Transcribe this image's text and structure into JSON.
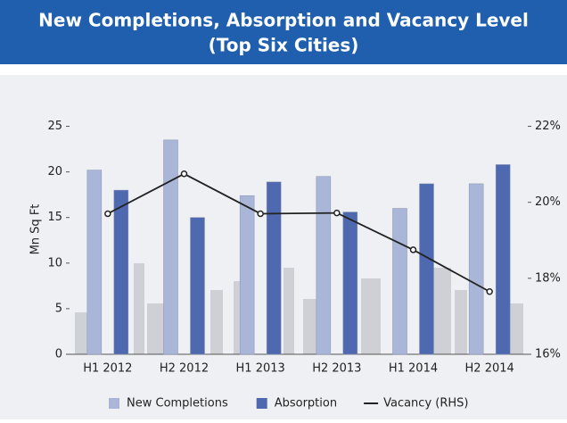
{
  "chart_data": {
    "type": "bar",
    "title": "New Completions, Absorption and Vacancy Level",
    "subtitle": "(Top Six Cities)",
    "y_label": "Mn Sq Ft",
    "categories": [
      "H1 2012",
      "H2 2012",
      "H1 2013",
      "H2 2013",
      "H1 2014",
      "H2 2014"
    ],
    "series": [
      {
        "name": "New Completions",
        "color": "#a9b6d8",
        "values": [
          20.2,
          23.5,
          17.4,
          19.5,
          16,
          18.7
        ]
      },
      {
        "name": "Absorption",
        "color": "#4f69b0",
        "values": [
          18,
          15,
          18.9,
          15.6,
          18.7,
          20.8
        ]
      },
      {
        "name": "Vacancy (RHS)",
        "type": "line",
        "axis": "y2",
        "color": "#222222",
        "values": [
          19.7,
          20.75,
          19.7,
          19.72,
          18.75,
          17.65
        ]
      }
    ],
    "ylim": [
      0,
      27.5
    ],
    "yticks": [
      0,
      5,
      10,
      15,
      20,
      25
    ],
    "y2lim": [
      16,
      22.6
    ],
    "y2ticks": [
      {
        "value": 16,
        "label": "16%"
      },
      {
        "value": 18,
        "label": "18%"
      },
      {
        "value": 20,
        "label": "20%"
      },
      {
        "value": 22,
        "label": "22%"
      }
    ]
  }
}
